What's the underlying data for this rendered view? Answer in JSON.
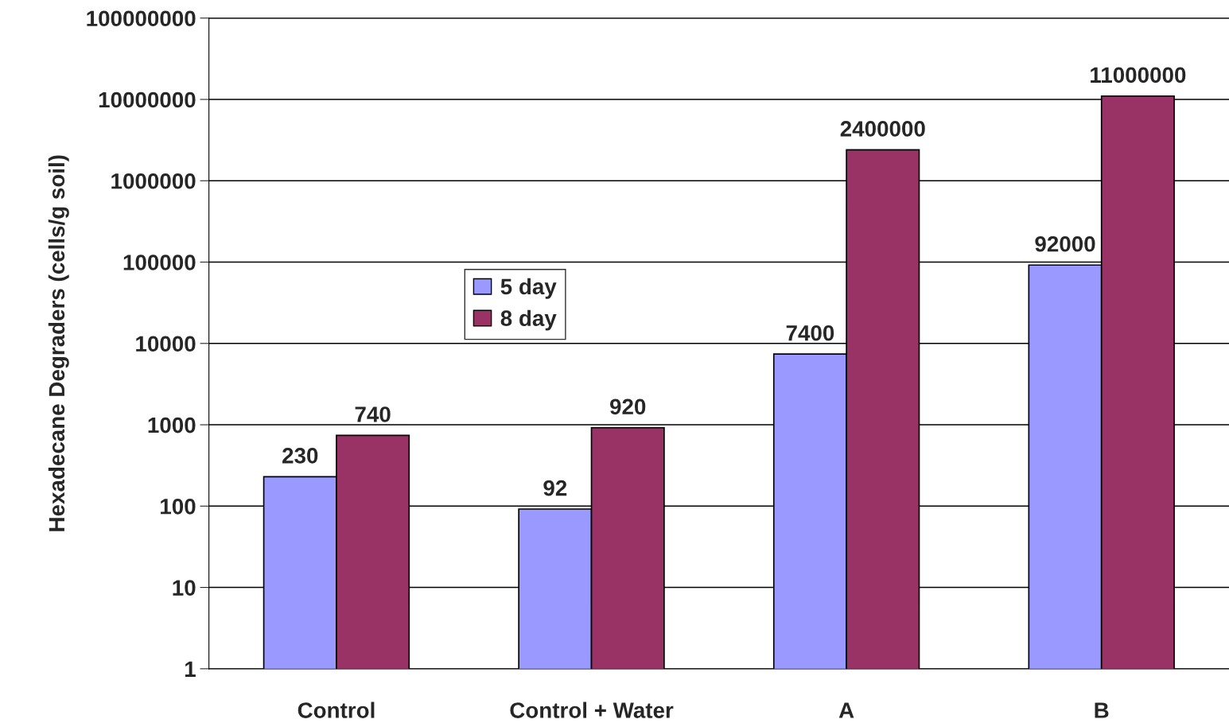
{
  "chart_data": {
    "type": "bar",
    "ylabel": "Hexadecane Degraders (cells/g soil)",
    "categories": [
      "Control",
      "Control + Water",
      "A",
      "B"
    ],
    "series": [
      {
        "name": "5 day",
        "color": "#9999ff",
        "values": [
          230,
          92,
          7400,
          92000
        ]
      },
      {
        "name": "8 day",
        "color": "#993366",
        "values": [
          740,
          920,
          2400000,
          11000000
        ]
      }
    ],
    "log": "y",
    "ylim": [
      1,
      100000000
    ],
    "yticks": [
      1,
      10,
      100,
      1000,
      10000,
      100000,
      1000000,
      10000000,
      100000000
    ],
    "grid": "y",
    "legend": "left",
    "data_labels": true
  }
}
